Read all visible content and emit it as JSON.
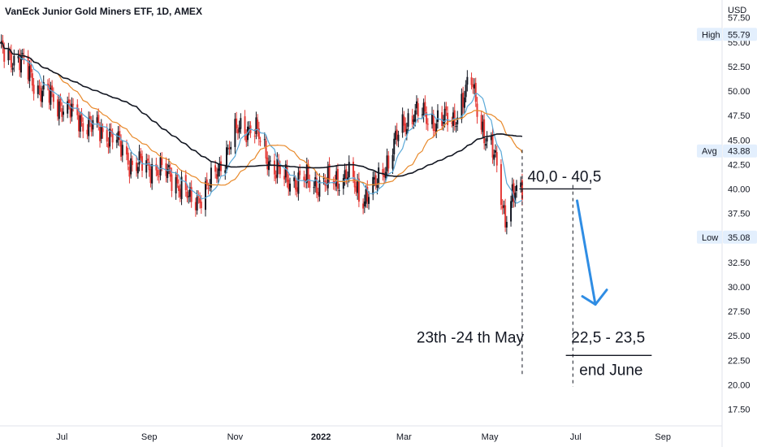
{
  "chart_data": {
    "type": "candlestick",
    "title": "VanEck Junior Gold Miners ETF, 1D, AMEX",
    "currency": "USD",
    "y_ticks": [
      "57.50",
      "55.00",
      "52.50",
      "50.00",
      "47.50",
      "45.00",
      "42.50",
      "40.00",
      "37.50",
      "35.00",
      "32.50",
      "30.00",
      "27.50",
      "25.00",
      "22.50",
      "20.00",
      "17.50"
    ],
    "ylim": [
      15.8,
      59.3
    ],
    "x_ticks": [
      {
        "label": "Jul",
        "date": "2021-07-01"
      },
      {
        "label": "Sep",
        "date": "2021-09-01"
      },
      {
        "label": "Nov",
        "date": "2021-11-01"
      },
      {
        "label": "2022",
        "date": "2022-01-01",
        "bold": true
      },
      {
        "label": "Mar",
        "date": "2022-03-01"
      },
      {
        "label": "May",
        "date": "2022-05-01"
      },
      {
        "label": "Jul",
        "date": "2022-07-01"
      },
      {
        "label": "Sep",
        "date": "2022-09-01"
      }
    ],
    "xlim": [
      "2021-05-18",
      "2022-10-13"
    ],
    "badges": [
      {
        "name": "high",
        "label": "High",
        "value": "55.79"
      },
      {
        "name": "avg",
        "label": "Avg",
        "value": "43.88"
      },
      {
        "name": "low",
        "label": "Low",
        "value": "35.08"
      }
    ],
    "price_path": [
      {
        "date": "2021-05-18",
        "close": 54.0
      },
      {
        "date": "2021-06-01",
        "close": 53.2
      },
      {
        "date": "2021-06-15",
        "close": 50.2
      },
      {
        "date": "2021-07-01",
        "close": 48.5
      },
      {
        "date": "2021-07-20",
        "close": 46.5
      },
      {
        "date": "2021-08-05",
        "close": 45.5
      },
      {
        "date": "2021-08-20",
        "close": 42.5
      },
      {
        "date": "2021-09-05",
        "close": 42.2
      },
      {
        "date": "2021-09-20",
        "close": 41.0
      },
      {
        "date": "2021-10-01",
        "close": 38.5
      },
      {
        "date": "2021-10-15",
        "close": 40.5
      },
      {
        "date": "2021-10-25",
        "close": 43.5
      },
      {
        "date": "2021-11-05",
        "close": 46.5
      },
      {
        "date": "2021-11-15",
        "close": 46.0
      },
      {
        "date": "2021-11-25",
        "close": 43.0
      },
      {
        "date": "2021-12-05",
        "close": 41.0
      },
      {
        "date": "2021-12-20",
        "close": 40.8
      },
      {
        "date": "2022-01-05",
        "close": 40.5
      },
      {
        "date": "2022-01-20",
        "close": 41.5
      },
      {
        "date": "2022-01-30",
        "close": 39.0
      },
      {
        "date": "2022-02-10",
        "close": 40.5
      },
      {
        "date": "2022-02-25",
        "close": 45.5
      },
      {
        "date": "2022-03-08",
        "close": 48.0
      },
      {
        "date": "2022-03-20",
        "close": 47.0
      },
      {
        "date": "2022-04-05",
        "close": 47.0
      },
      {
        "date": "2022-04-18",
        "close": 51.0
      },
      {
        "date": "2022-04-28",
        "close": 45.0
      },
      {
        "date": "2022-05-05",
        "close": 43.0
      },
      {
        "date": "2022-05-12",
        "close": 37.0
      },
      {
        "date": "2022-05-17",
        "close": 39.0
      },
      {
        "date": "2022-05-24",
        "close": 40.0
      }
    ],
    "moving_averages": [
      {
        "color": "#5aa9d8",
        "period": 10
      },
      {
        "color": "#e8892a",
        "period": 30
      },
      {
        "color": "#131722",
        "period": 70
      }
    ],
    "annotations": {
      "level_label": "40,0 - 40,5",
      "level_value": 40.0,
      "level_start": "2022-05-22",
      "level_end": "2022-07-12",
      "target_label": "22,5 - 23,5",
      "target_value": 23.0,
      "target_start": "2022-06-24",
      "target_end": "2022-08-24",
      "date_label": "23th -24 th May",
      "date_marker": "2022-05-24",
      "end_label": "end June",
      "end_marker": "2022-06-29",
      "arrow_color": "#2f8de4",
      "arrow_from": {
        "date": "2022-07-02",
        "value": 38.8
      },
      "arrow_to": {
        "date": "2022-07-15",
        "value": 28.2
      }
    }
  }
}
